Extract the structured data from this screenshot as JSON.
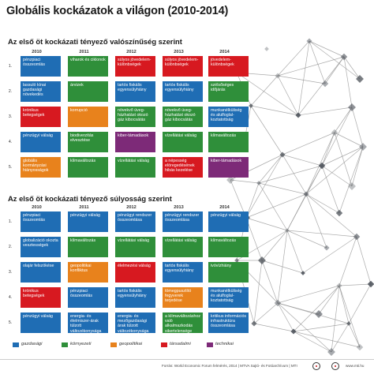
{
  "title": "Globális kockázatok a világon (2010-2014)",
  "colors": {
    "gazdasagi": "#1f6db4",
    "kornyezeti": "#2f8f3a",
    "geopolitikai": "#e8821c",
    "tarsadalmi": "#d71920",
    "technikai": "#7d2a78",
    "network_line": "#8f8f8f",
    "network_node": "#4a4f57"
  },
  "sections": [
    {
      "title": "Az első öt kockázati tényező valószínűség szerint",
      "years": [
        "2010",
        "2011",
        "2012",
        "2013",
        "2014"
      ],
      "rows": [
        {
          "rank": "1.",
          "cells": [
            {
              "text": "pénzpiaci összeomlás",
              "cat": "gazdasagi"
            },
            {
              "text": "viharok és ciklonok",
              "cat": "kornyezeti"
            },
            {
              "text": "súlyos jövedelem-különbségek",
              "cat": "tarsadalmi"
            },
            {
              "text": "súlyos jövedelem-különbségek",
              "cat": "tarsadalmi"
            },
            {
              "text": "jövedelem-különbségek",
              "cat": "tarsadalmi"
            }
          ]
        },
        {
          "rank": "2.",
          "cells": [
            {
              "text": "lassuló kínai gazdasági növekedés",
              "cat": "gazdasagi"
            },
            {
              "text": "árvizek",
              "cat": "kornyezeti"
            },
            {
              "text": "tartós fiskális egyensúlyhiány",
              "cat": "gazdasagi"
            },
            {
              "text": "tartós fiskális egyensúlyhiány",
              "cat": "gazdasagi"
            },
            {
              "text": "szélsőséges időjárás",
              "cat": "kornyezeti"
            }
          ]
        },
        {
          "rank": "3.",
          "cells": [
            {
              "text": "krónikus betegségek",
              "cat": "tarsadalmi"
            },
            {
              "text": "korrupció",
              "cat": "geopolitikai"
            },
            {
              "text": "növekvő üveg-házhatást okozó gáz kibocsátás",
              "cat": "kornyezeti"
            },
            {
              "text": "növekvő üveg-házhatást okozó gáz kibocsátás",
              "cat": "kornyezeti"
            },
            {
              "text": "munkanélküliség és alulfoglal-koztatottság",
              "cat": "gazdasagi"
            }
          ]
        },
        {
          "rank": "4.",
          "cells": [
            {
              "text": "pénzügyi válság",
              "cat": "gazdasagi"
            },
            {
              "text": "biodiverzitás elvesztése",
              "cat": "kornyezeti"
            },
            {
              "text": "kiber-támadások",
              "cat": "technikai"
            },
            {
              "text": "vízellátási válság",
              "cat": "kornyezeti"
            },
            {
              "text": "klímaváltozás",
              "cat": "kornyezeti"
            }
          ]
        },
        {
          "rank": "5.",
          "cells": [
            {
              "text": "globális kormányzási hiányosságok",
              "cat": "geopolitikai"
            },
            {
              "text": "klímaváltozás",
              "cat": "kornyezeti"
            },
            {
              "text": "vízellátási válság",
              "cat": "kornyezeti"
            },
            {
              "text": "a népesség elöregedésének hibás kezelése",
              "cat": "tarsadalmi"
            },
            {
              "text": "kiber-támadások",
              "cat": "technikai"
            }
          ]
        }
      ]
    },
    {
      "title": "Az első öt kockázati tényező súlyosság szerint",
      "years": [
        "2010",
        "2011",
        "2012",
        "2013",
        "2014"
      ],
      "rows": [
        {
          "rank": "1.",
          "cells": [
            {
              "text": "pénzpiaci összeomlás",
              "cat": "gazdasagi"
            },
            {
              "text": "pénzügyi válság",
              "cat": "gazdasagi"
            },
            {
              "text": "pénzügyi rendszer összeomlása",
              "cat": "gazdasagi"
            },
            {
              "text": "pénzügyi rendszer összeomlása",
              "cat": "gazdasagi"
            },
            {
              "text": "pénzügyi válság",
              "cat": "gazdasagi"
            }
          ]
        },
        {
          "rank": "2.",
          "cells": [
            {
              "text": "globalizáció okozta vesztességek",
              "cat": "gazdasagi"
            },
            {
              "text": "klímaváltozás",
              "cat": "kornyezeti"
            },
            {
              "text": "vízellátási válság",
              "cat": "kornyezeti"
            },
            {
              "text": "vízellátási válság",
              "cat": "kornyezeti"
            },
            {
              "text": "klímaváltozás",
              "cat": "kornyezeti"
            }
          ]
        },
        {
          "rank": "3.",
          "cells": [
            {
              "text": "olajár felszökése",
              "cat": "gazdasagi"
            },
            {
              "text": "geopolitikai konfliktus",
              "cat": "geopolitikai"
            },
            {
              "text": "élelmezési válság",
              "cat": "tarsadalmi"
            },
            {
              "text": "tartós fiskális egyensúlyhiány",
              "cat": "gazdasagi"
            },
            {
              "text": "ivóvízhiány",
              "cat": "kornyezeti"
            }
          ]
        },
        {
          "rank": "4.",
          "cells": [
            {
              "text": "krónikus betegségek",
              "cat": "tarsadalmi"
            },
            {
              "text": "pénzpiaci összeomlás",
              "cat": "gazdasagi"
            },
            {
              "text": "tartós fiskális egyensúlyhiány",
              "cat": "gazdasagi"
            },
            {
              "text": "tömegpusztító fegyverek terjedése",
              "cat": "geopolitikai"
            },
            {
              "text": "munkanélküliség és alulfoglal-koztatottság",
              "cat": "gazdasagi"
            }
          ]
        },
        {
          "rank": "5.",
          "cells": [
            {
              "text": "pénzügyi válság",
              "cat": "gazdasagi"
            },
            {
              "text": "energia- és élelmiszer-árak túlzott változékonysága",
              "cat": "gazdasagi"
            },
            {
              "text": "energia- és mezőgazdasági árak túlzott változékonysága",
              "cat": "gazdasagi"
            },
            {
              "text": "a klímaváltozáshoz való alkalmazkodás sikertelensége",
              "cat": "kornyezeti"
            },
            {
              "text": "kritikus információs infrastruktúra összeomlása",
              "cat": "gazdasagi"
            }
          ]
        }
      ]
    }
  ],
  "legend": [
    {
      "label": "gazdasági",
      "cat": "gazdasagi"
    },
    {
      "label": "környezeti",
      "cat": "kornyezeti"
    },
    {
      "label": "geopolitikai",
      "cat": "geopolitikai"
    },
    {
      "label": "társadalmi",
      "cat": "tarsadalmi"
    },
    {
      "label": "technikai",
      "cat": "technikai"
    }
  ],
  "footer": {
    "source": "Forrás: World Economic Forum felmérés, 2014 | MTVA Sajtó- és Fotóarchívum | MTI",
    "site": "www.mti.hu"
  }
}
